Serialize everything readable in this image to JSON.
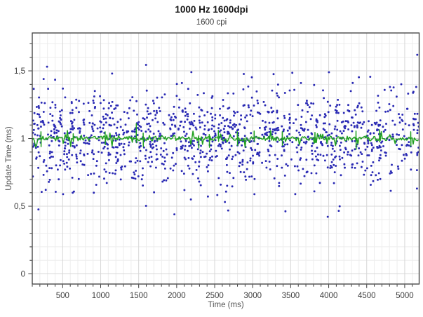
{
  "chart_data": {
    "type": "scatter",
    "title": "1000 Hz 1600dpi",
    "subtitle": "1600 cpi",
    "xlabel": "Time (ms)",
    "ylabel": "Update Time (ms)",
    "x_range": [
      100,
      5190
    ],
    "y_range": [
      -0.075,
      1.78
    ],
    "x_major_ticks": [
      500,
      1000,
      1500,
      2000,
      2500,
      3000,
      3500,
      4000,
      4500,
      5000
    ],
    "x_major_tick_labels": [
      "500",
      "1000",
      "1500",
      "2000",
      "2500",
      "3000",
      "3500",
      "4000",
      "4500",
      "5000"
    ],
    "x_minor_step": 100,
    "y_major_ticks": [
      0,
      0.5,
      1,
      1.5
    ],
    "y_major_tick_labels": [
      "0",
      "0,5",
      "1",
      "1,5"
    ],
    "y_minor_step": 0.1,
    "grid": {
      "on": true,
      "minor_color": "#ededed",
      "major_color": "#d7d7d7"
    },
    "axis_color": "#3c3c3c",
    "legend": "none",
    "series": [
      {
        "name": "update_time_samples",
        "type": "scatter",
        "color": "#2a2ab4",
        "marker": "rounded-square",
        "marker_size": 2.8,
        "n_points": 1320,
        "x_min": 105,
        "x_max": 5185,
        "y_mean": 1.0,
        "y_std_core": 0.15,
        "y_std_tail": 0.27,
        "tail_fraction": 0.2,
        "y_min": 0.4,
        "y_max": 1.62,
        "seed": 1337
      },
      {
        "name": "interval_average_line",
        "type": "line",
        "color": "#21a121",
        "line_width": 1.5,
        "base_value": 1.0,
        "noise_amplitude": 0.017,
        "minor_spike_prob": 0.12,
        "minor_spike_amplitude": 0.045,
        "sample_step_ms": 14,
        "seed": 99,
        "major_spikes": [
          {
            "x": 215,
            "up": 0.05,
            "down": -0.06
          },
          {
            "x": 640,
            "up": 0.035,
            "down": -0.02
          },
          {
            "x": 1060,
            "up": 0.05,
            "down": -0.045
          },
          {
            "x": 1470,
            "up": 0.11,
            "down": -0.03
          },
          {
            "x": 1560,
            "up": 0.04,
            "down": -0.06
          },
          {
            "x": 2290,
            "up": 0.02,
            "down": -0.07
          },
          {
            "x": 2430,
            "up": 0.03,
            "down": -0.065
          },
          {
            "x": 2550,
            "up": 0.06,
            "down": -0.02
          },
          {
            "x": 2800,
            "up": 0.05,
            "down": -0.05
          },
          {
            "x": 3020,
            "up": 0.055,
            "down": -0.02
          },
          {
            "x": 3390,
            "up": 0.05,
            "down": -0.05
          },
          {
            "x": 3820,
            "up": 0.045,
            "down": -0.03
          },
          {
            "x": 4360,
            "up": 0.055,
            "down": -0.08
          },
          {
            "x": 4670,
            "up": 0.065,
            "down": -0.025
          },
          {
            "x": 5080,
            "up": 0.05,
            "down": -0.055
          }
        ]
      }
    ]
  }
}
